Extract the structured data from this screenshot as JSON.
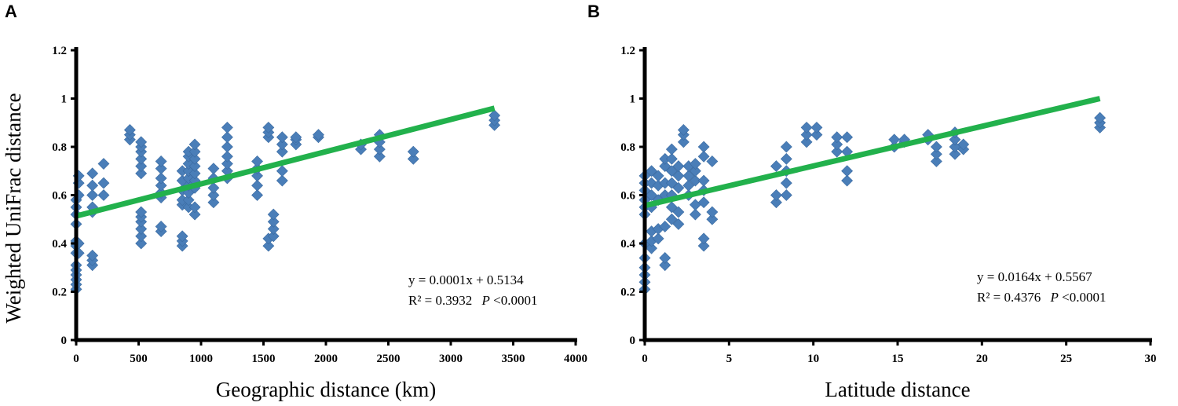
{
  "figure": {
    "shared_ylabel": "Weighted UniFrac distance"
  },
  "colors": {
    "marker": "#4a7eb8",
    "marker_stroke": "#3a6aa0",
    "fit_line": "#22b14c",
    "axis": "#000000"
  },
  "chart_data": [
    {
      "panel": "A",
      "type": "scatter",
      "xlabel": "Geographic distance (km)",
      "ylabel": "Weighted UniFrac distance",
      "xlim": [
        0,
        4000
      ],
      "ylim": [
        0,
        1.2
      ],
      "xticks": [
        0,
        500,
        1000,
        1500,
        2000,
        2500,
        3000,
        3500,
        4000
      ],
      "yticks": [
        0,
        0.2,
        0.4,
        0.6,
        0.8,
        1,
        1.2
      ],
      "ytick_labels": [
        "0",
        "0.2",
        "0.4",
        "0.6",
        "0.8",
        "1",
        "1.2"
      ],
      "marker": "diamond",
      "trendline": {
        "slope": 0.0001,
        "intercept": 0.5134,
        "x_range": [
          0,
          3350
        ],
        "y_end": 0.96
      },
      "equation": "y = 0.0001x  + 0.5134",
      "r2_text": "R² = 0.3932",
      "p_label": "P",
      "p_text": "<0.0001",
      "clusters": [
        {
          "x": 0,
          "ys": [
            0.21,
            0.23,
            0.25,
            0.27,
            0.29,
            0.31,
            0.36,
            0.39,
            0.41,
            0.48,
            0.52,
            0.55,
            0.58
          ]
        },
        {
          "x": 20,
          "ys": [
            0.36,
            0.4,
            0.6,
            0.65,
            0.68
          ]
        },
        {
          "x": 130,
          "ys": [
            0.31,
            0.33,
            0.35,
            0.53,
            0.55,
            0.6,
            0.64,
            0.69
          ]
        },
        {
          "x": 220,
          "ys": [
            0.6,
            0.65,
            0.73
          ]
        },
        {
          "x": 430,
          "ys": [
            0.83,
            0.85,
            0.87
          ]
        },
        {
          "x": 520,
          "ys": [
            0.4,
            0.43,
            0.46,
            0.49,
            0.51,
            0.53,
            0.69,
            0.72,
            0.75,
            0.78,
            0.8,
            0.82
          ]
        },
        {
          "x": 680,
          "ys": [
            0.45,
            0.47,
            0.59,
            0.61,
            0.64,
            0.67,
            0.71,
            0.74
          ]
        },
        {
          "x": 850,
          "ys": [
            0.39,
            0.41,
            0.43,
            0.56,
            0.58,
            0.62,
            0.66,
            0.7
          ]
        },
        {
          "x": 900,
          "ys": [
            0.55,
            0.58,
            0.61,
            0.64,
            0.67,
            0.7,
            0.73,
            0.76,
            0.78
          ]
        },
        {
          "x": 950,
          "ys": [
            0.52,
            0.55,
            0.63,
            0.66,
            0.69,
            0.72,
            0.75,
            0.78,
            0.81
          ]
        },
        {
          "x": 1100,
          "ys": [
            0.57,
            0.6,
            0.63,
            0.67,
            0.71
          ]
        },
        {
          "x": 1210,
          "ys": [
            0.67,
            0.7,
            0.73,
            0.76,
            0.8,
            0.84,
            0.88
          ]
        },
        {
          "x": 1450,
          "ys": [
            0.6,
            0.64,
            0.68,
            0.71,
            0.74
          ]
        },
        {
          "x": 1540,
          "ys": [
            0.39,
            0.42,
            0.84,
            0.86,
            0.88
          ]
        },
        {
          "x": 1580,
          "ys": [
            0.43,
            0.46,
            0.49,
            0.52
          ]
        },
        {
          "x": 1650,
          "ys": [
            0.66,
            0.7,
            0.78,
            0.81,
            0.84
          ]
        },
        {
          "x": 1760,
          "ys": [
            0.81,
            0.83,
            0.84
          ]
        },
        {
          "x": 1940,
          "ys": [
            0.84,
            0.85
          ]
        },
        {
          "x": 2280,
          "ys": [
            0.79,
            0.81
          ]
        },
        {
          "x": 2430,
          "ys": [
            0.76,
            0.79,
            0.82,
            0.85
          ]
        },
        {
          "x": 2700,
          "ys": [
            0.75,
            0.78
          ]
        },
        {
          "x": 3350,
          "ys": [
            0.89,
            0.91,
            0.93
          ]
        }
      ]
    },
    {
      "panel": "B",
      "type": "scatter",
      "xlabel": "Latitude distance",
      "ylabel": "",
      "xlim": [
        0,
        30
      ],
      "ylim": [
        0,
        1.2
      ],
      "xticks": [
        0,
        5,
        10,
        15,
        20,
        25,
        30
      ],
      "yticks": [
        0,
        0.2,
        0.4,
        0.6,
        0.8,
        1,
        1.2
      ],
      "ytick_labels": [
        "0",
        "0.2",
        "0.4",
        "0.6",
        "0.8",
        "1",
        "1.2"
      ],
      "marker": "diamond",
      "trendline": {
        "slope": 0.0164,
        "intercept": 0.5567,
        "x_range": [
          0,
          27
        ],
        "y_end": 1.0
      },
      "equation": "y = 0.0164x  + 0.5567",
      "r2_text": "R² = 0.4376",
      "p_label": "P",
      "p_text": "<0.0001",
      "clusters": [
        {
          "x": 0,
          "ys": [
            0.21,
            0.24,
            0.27,
            0.3,
            0.34,
            0.4,
            0.52,
            0.55,
            0.58,
            0.62,
            0.65,
            0.68
          ]
        },
        {
          "x": 0.4,
          "ys": [
            0.38,
            0.41,
            0.45,
            0.55,
            0.6,
            0.65,
            0.7
          ]
        },
        {
          "x": 0.8,
          "ys": [
            0.42,
            0.46,
            0.58,
            0.64,
            0.68
          ]
        },
        {
          "x": 1.2,
          "ys": [
            0.31,
            0.34,
            0.47,
            0.6,
            0.65,
            0.72,
            0.75
          ]
        },
        {
          "x": 1.6,
          "ys": [
            0.5,
            0.55,
            0.6,
            0.65,
            0.7,
            0.75,
            0.79
          ]
        },
        {
          "x": 2.0,
          "ys": [
            0.48,
            0.53,
            0.63,
            0.68,
            0.72
          ]
        },
        {
          "x": 2.3,
          "ys": [
            0.82,
            0.85,
            0.87
          ]
        },
        {
          "x": 2.6,
          "ys": [
            0.6,
            0.64,
            0.68,
            0.72
          ]
        },
        {
          "x": 3.0,
          "ys": [
            0.52,
            0.56,
            0.66,
            0.7,
            0.73
          ]
        },
        {
          "x": 3.5,
          "ys": [
            0.39,
            0.42,
            0.57,
            0.62,
            0.66,
            0.76,
            0.8
          ]
        },
        {
          "x": 4.0,
          "ys": [
            0.5,
            0.53,
            0.74
          ]
        },
        {
          "x": 7.8,
          "ys": [
            0.57,
            0.6,
            0.72
          ]
        },
        {
          "x": 8.4,
          "ys": [
            0.6,
            0.65,
            0.7,
            0.75,
            0.8
          ]
        },
        {
          "x": 9.6,
          "ys": [
            0.82,
            0.85,
            0.88
          ]
        },
        {
          "x": 10.2,
          "ys": [
            0.85,
            0.88
          ]
        },
        {
          "x": 11.4,
          "ys": [
            0.78,
            0.81,
            0.84
          ]
        },
        {
          "x": 12.0,
          "ys": [
            0.66,
            0.7,
            0.78,
            0.84
          ]
        },
        {
          "x": 14.8,
          "ys": [
            0.8,
            0.83
          ]
        },
        {
          "x": 15.4,
          "ys": [
            0.82,
            0.83
          ]
        },
        {
          "x": 16.8,
          "ys": [
            0.83,
            0.85
          ]
        },
        {
          "x": 17.3,
          "ys": [
            0.74,
            0.77,
            0.8
          ]
        },
        {
          "x": 18.4,
          "ys": [
            0.77,
            0.8,
            0.83,
            0.86
          ]
        },
        {
          "x": 18.9,
          "ys": [
            0.79,
            0.81
          ]
        },
        {
          "x": 27,
          "ys": [
            0.88,
            0.9,
            0.92
          ]
        }
      ]
    }
  ]
}
